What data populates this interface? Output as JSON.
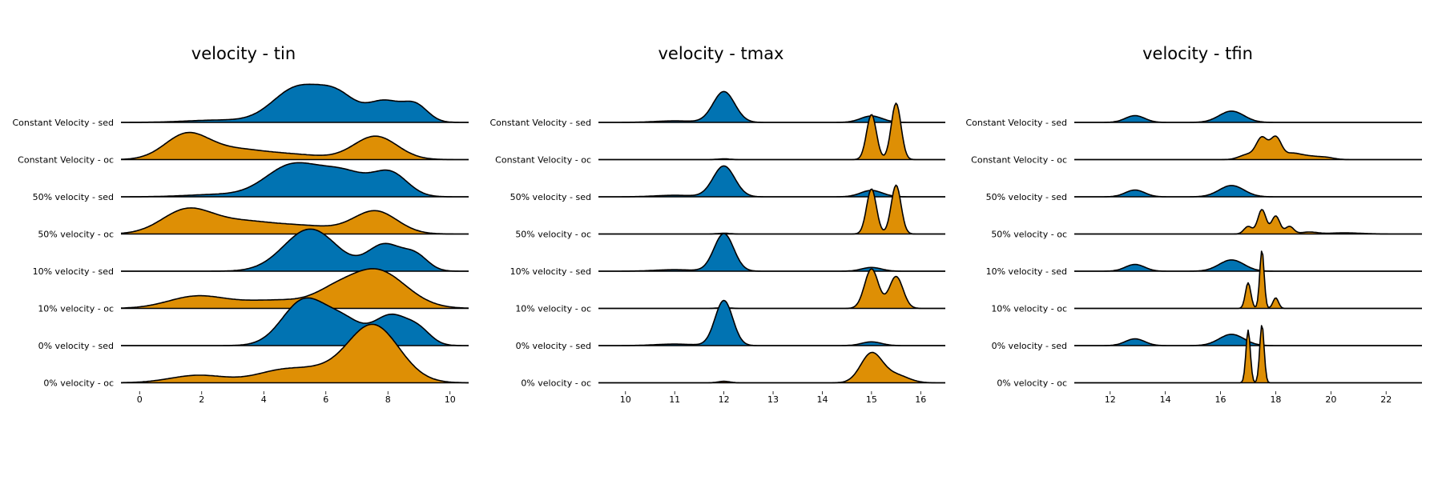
{
  "chart_data": [
    {
      "type": "ridgeline",
      "title": "velocity - tin",
      "xlim": [
        -0.6,
        10.6
      ],
      "xticks": [
        0,
        2,
        4,
        6,
        8,
        10
      ],
      "xticklabels": [
        "0",
        "2",
        "4",
        "6",
        "8",
        "10"
      ],
      "series": [
        {
          "name": "Constant Velocity - sed",
          "color": "#0173b2",
          "peaks": [
            [
              5.1,
              0.8,
              0.92
            ],
            [
              6.4,
              0.6,
              0.62
            ],
            [
              7.9,
              0.55,
              0.55
            ],
            [
              8.9,
              0.4,
              0.42
            ],
            [
              2.5,
              1.0,
              0.06
            ]
          ]
        },
        {
          "name": "Constant Velocity - oc",
          "color": "#de8f05",
          "peaks": [
            [
              1.5,
              0.7,
              0.63
            ],
            [
              3.0,
              1.0,
              0.26
            ],
            [
              5.0,
              1.0,
              0.12
            ],
            [
              7.6,
              0.7,
              0.62
            ]
          ]
        },
        {
          "name": "50% velocity - sed",
          "color": "#0173b2",
          "peaks": [
            [
              4.9,
              0.85,
              0.82
            ],
            [
              6.6,
              0.8,
              0.62
            ],
            [
              8.1,
              0.55,
              0.58
            ],
            [
              2.5,
              1.0,
              0.06
            ]
          ]
        },
        {
          "name": "50% velocity - oc",
          "color": "#de8f05",
          "peaks": [
            [
              1.5,
              0.8,
              0.6
            ],
            [
              3.3,
              1.1,
              0.32
            ],
            [
              5.5,
              1.0,
              0.18
            ],
            [
              7.6,
              0.7,
              0.6
            ]
          ]
        },
        {
          "name": "10% velocity - sed",
          "color": "#0173b2",
          "peaks": [
            [
              5.5,
              0.85,
              1.12
            ],
            [
              7.9,
              0.55,
              0.7
            ],
            [
              8.9,
              0.4,
              0.38
            ]
          ]
        },
        {
          "name": "10% velocity - oc",
          "color": "#de8f05",
          "peaks": [
            [
              1.8,
              0.9,
              0.3
            ],
            [
              4.5,
              1.4,
              0.22
            ],
            [
              7.6,
              0.95,
              1.02
            ],
            [
              6.2,
              0.6,
              0.2
            ]
          ]
        },
        {
          "name": "0% velocity - sed",
          "color": "#0173b2",
          "peaks": [
            [
              5.3,
              0.7,
              1.2
            ],
            [
              6.6,
              0.6,
              0.6
            ],
            [
              8.1,
              0.55,
              0.78
            ],
            [
              9.0,
              0.4,
              0.35
            ]
          ]
        },
        {
          "name": "0% velocity - oc",
          "color": "#de8f05",
          "peaks": [
            [
              1.9,
              0.9,
              0.2
            ],
            [
              4.7,
              0.9,
              0.35
            ],
            [
              7.5,
              0.85,
              1.55
            ],
            [
              5.8,
              0.6,
              0.12
            ]
          ]
        }
      ]
    },
    {
      "type": "ridgeline",
      "title": "velocity - tmax",
      "xlim": [
        9.45,
        16.5
      ],
      "xticks": [
        10,
        11,
        12,
        13,
        14,
        15,
        16
      ],
      "xticklabels": [
        "10",
        "11",
        "12",
        "13",
        "14",
        "15",
        "16"
      ],
      "series": [
        {
          "name": "Constant Velocity - sed",
          "color": "#0173b2",
          "peaks": [
            [
              12.0,
              0.22,
              0.82
            ],
            [
              11.0,
              0.4,
              0.04
            ],
            [
              15.0,
              0.22,
              0.17
            ]
          ]
        },
        {
          "name": "Constant Velocity - oc",
          "color": "#de8f05",
          "peaks": [
            [
              15.0,
              0.1,
              1.2
            ],
            [
              15.5,
              0.1,
              1.5
            ],
            [
              12.0,
              0.12,
              0.02
            ]
          ]
        },
        {
          "name": "50% velocity - sed",
          "color": "#0173b2",
          "peaks": [
            [
              12.0,
              0.22,
              0.82
            ],
            [
              11.0,
              0.4,
              0.04
            ],
            [
              15.0,
              0.22,
              0.17
            ]
          ]
        },
        {
          "name": "50% velocity - oc",
          "color": "#de8f05",
          "peaks": [
            [
              15.0,
              0.1,
              1.2
            ],
            [
              15.5,
              0.1,
              1.3
            ],
            [
              12.0,
              0.12,
              0.02
            ]
          ]
        },
        {
          "name": "10% velocity - sed",
          "color": "#0173b2",
          "peaks": [
            [
              12.0,
              0.2,
              1.0
            ],
            [
              11.0,
              0.4,
              0.04
            ],
            [
              15.0,
              0.2,
              0.1
            ]
          ]
        },
        {
          "name": "10% velocity - oc",
          "color": "#de8f05",
          "peaks": [
            [
              15.0,
              0.14,
              1.05
            ],
            [
              15.5,
              0.14,
              0.85
            ],
            [
              12.0,
              0.12,
              0.02
            ]
          ]
        },
        {
          "name": "0% velocity - sed",
          "color": "#0173b2",
          "peaks": [
            [
              12.0,
              0.18,
              1.2
            ],
            [
              11.0,
              0.4,
              0.04
            ],
            [
              15.0,
              0.2,
              0.1
            ]
          ]
        },
        {
          "name": "0% velocity - oc",
          "color": "#de8f05",
          "peaks": [
            [
              15.0,
              0.22,
              0.78
            ],
            [
              15.5,
              0.25,
              0.2
            ],
            [
              12.0,
              0.12,
              0.04
            ]
          ]
        }
      ]
    },
    {
      "type": "ridgeline",
      "title": "velocity - tfin",
      "xlim": [
        10.7,
        23.3
      ],
      "xticks": [
        12,
        14,
        16,
        18,
        20,
        22
      ],
      "xticklabels": [
        "12",
        "14",
        "16",
        "18",
        "20",
        "22"
      ],
      "series": [
        {
          "name": "Constant Velocity - sed",
          "color": "#0173b2",
          "peaks": [
            [
              12.9,
              0.35,
              0.18
            ],
            [
              16.4,
              0.45,
              0.3
            ]
          ]
        },
        {
          "name": "Constant Velocity - oc",
          "color": "#de8f05",
          "peaks": [
            [
              17.5,
              0.2,
              0.55
            ],
            [
              18.0,
              0.2,
              0.58
            ],
            [
              17.0,
              0.3,
              0.14
            ],
            [
              18.6,
              0.3,
              0.16
            ],
            [
              19.2,
              0.3,
              0.08
            ],
            [
              19.8,
              0.3,
              0.06
            ]
          ]
        },
        {
          "name": "50% velocity - sed",
          "color": "#0173b2",
          "peaks": [
            [
              12.9,
              0.35,
              0.18
            ],
            [
              16.4,
              0.45,
              0.3
            ]
          ]
        },
        {
          "name": "50% velocity - oc",
          "color": "#de8f05",
          "peaks": [
            [
              17.0,
              0.15,
              0.2
            ],
            [
              17.5,
              0.15,
              0.65
            ],
            [
              18.0,
              0.15,
              0.48
            ],
            [
              18.5,
              0.15,
              0.2
            ],
            [
              19.2,
              0.3,
              0.05
            ],
            [
              20.5,
              0.6,
              0.03
            ]
          ]
        },
        {
          "name": "10% velocity - sed",
          "color": "#0173b2",
          "peaks": [
            [
              12.9,
              0.35,
              0.18
            ],
            [
              16.4,
              0.45,
              0.3
            ]
          ]
        },
        {
          "name": "10% velocity - oc",
          "color": "#de8f05",
          "peaks": [
            [
              17.0,
              0.1,
              0.68
            ],
            [
              17.5,
              0.08,
              1.55
            ],
            [
              18.0,
              0.1,
              0.28
            ]
          ]
        },
        {
          "name": "0% velocity - sed",
          "color": "#0173b2",
          "peaks": [
            [
              12.9,
              0.35,
              0.18
            ],
            [
              16.4,
              0.45,
              0.3
            ]
          ]
        },
        {
          "name": "0% velocity - oc",
          "color": "#de8f05",
          "peaks": [
            [
              17.0,
              0.08,
              1.4
            ],
            [
              17.5,
              0.08,
              1.55
            ]
          ]
        }
      ]
    }
  ]
}
